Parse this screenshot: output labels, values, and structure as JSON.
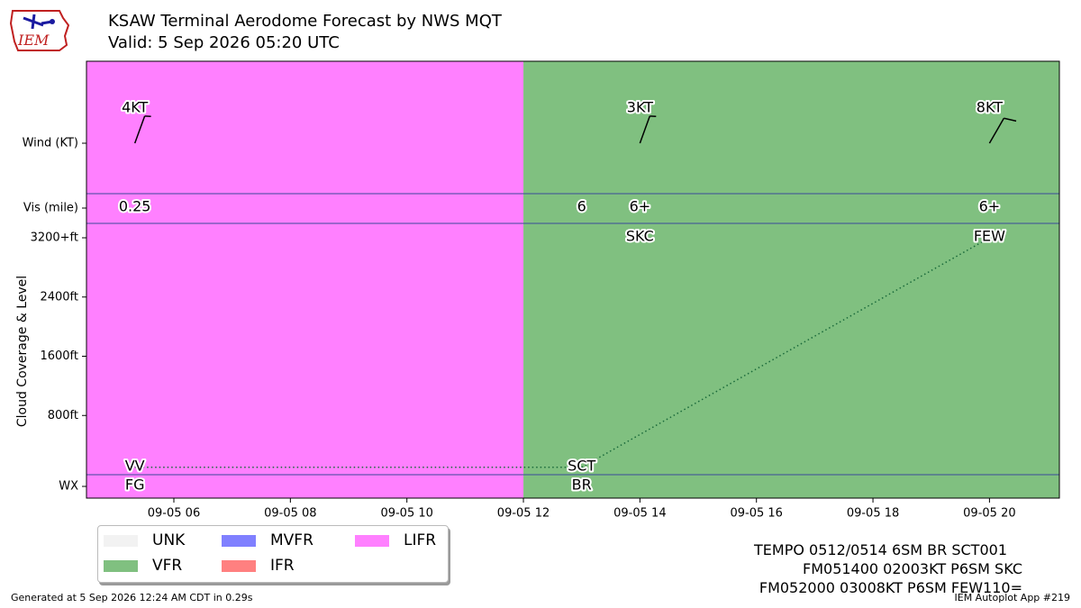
{
  "header": {
    "title_line1": "KSAW Terminal Aerodome Forecast by NWS MQT",
    "title_line2": "Valid: 5 Sep 2026 05:20 UTC",
    "logo_text": "IEM"
  },
  "legend": {
    "items": [
      {
        "label": "UNK",
        "color": "#f2f2f2"
      },
      {
        "label": "VFR",
        "color": "#80c080"
      },
      {
        "label": "MVFR",
        "color": "#8080ff"
      },
      {
        "label": "IFR",
        "color": "#ff8080"
      },
      {
        "label": "LIFR",
        "color": "#ff80ff"
      }
    ]
  },
  "taf_text": [
    "TEMPO 0512/0514 6SM BR SCT001",
    "FM051400 02003KT P6SM SKC",
    "FM052000 03008KT P6SM FEW110="
  ],
  "footer": {
    "generated": "Generated at 5 Sep 2026 12:24 AM CDT in 0.29s",
    "app": "IEM Autoplot App #219"
  },
  "chart_data": {
    "type": "timeline",
    "x_range_hours": [
      4.5,
      21.2
    ],
    "x_ticks": [
      {
        "hour": 6,
        "label": "09-05 06"
      },
      {
        "hour": 8,
        "label": "09-05 08"
      },
      {
        "hour": 10,
        "label": "09-05 10"
      },
      {
        "hour": 12,
        "label": "09-05 12"
      },
      {
        "hour": 14,
        "label": "09-05 14"
      },
      {
        "hour": 16,
        "label": "09-05 16"
      },
      {
        "hour": 18,
        "label": "09-05 18"
      },
      {
        "hour": 20,
        "label": "09-05 20"
      }
    ],
    "ylabel": "Cloud Coverage & Level",
    "rows": {
      "wind": "Wind (KT)",
      "vis": "Vis (mile)",
      "wx": "WX"
    },
    "cloud_ticks": [
      {
        "ft": 800,
        "label": "800ft"
      },
      {
        "ft": 1600,
        "label": "1600ft"
      },
      {
        "ft": 2400,
        "label": "2400ft"
      },
      {
        "ft": 3200,
        "label": "3200+ft"
      }
    ],
    "categories": [
      {
        "start": 4.5,
        "end": 12.0,
        "category": "LIFR",
        "color": "#ff80ff"
      },
      {
        "start": 12.0,
        "end": 21.2,
        "category": "VFR",
        "color": "#80c080"
      }
    ],
    "forecasts": [
      {
        "hour": 5.33,
        "wind_label": "4KT",
        "wind_dir": 20,
        "wind_kt": 4,
        "vis": "0.25",
        "sky": "VV",
        "cloud_ft": 100,
        "wx": "FG"
      },
      {
        "hour": 13.0,
        "vis": "6",
        "sky": "SCT",
        "cloud_ft": 100,
        "wx": "BR"
      },
      {
        "hour": 14.0,
        "wind_label": "3KT",
        "wind_dir": 20,
        "wind_kt": 3,
        "vis": "6+",
        "sky": "SKC"
      },
      {
        "hour": 20.0,
        "wind_label": "8KT",
        "wind_dir": 30,
        "wind_kt": 8,
        "vis": "6+",
        "sky": "FEW",
        "cloud_ft": 3200
      }
    ]
  }
}
